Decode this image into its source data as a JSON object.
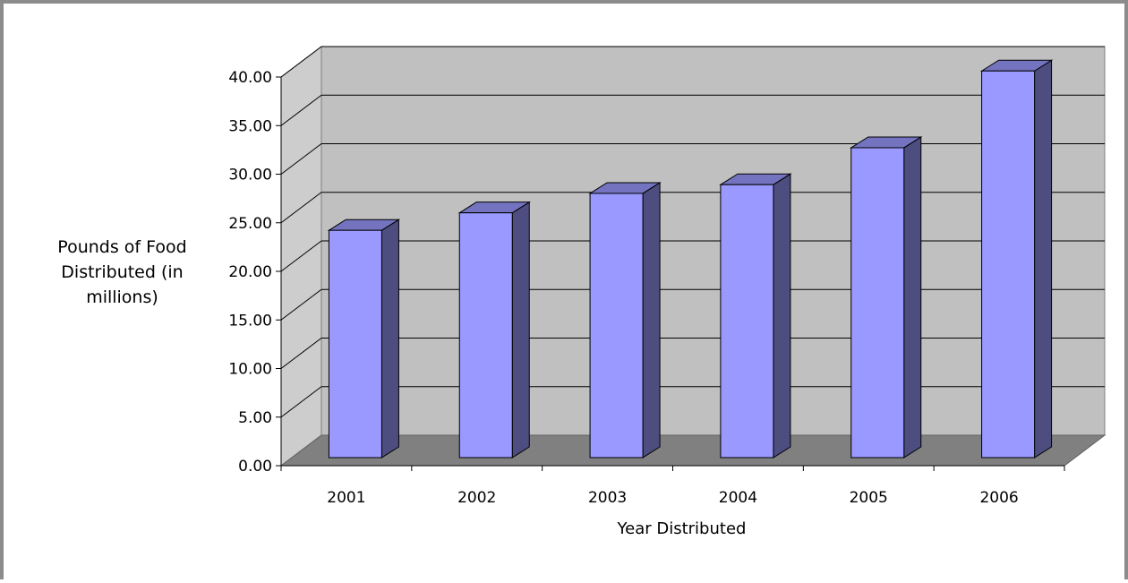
{
  "chart_data": {
    "type": "bar",
    "style": "3d-column",
    "categories": [
      "2001",
      "2002",
      "2003",
      "2004",
      "2005",
      "2006"
    ],
    "values": [
      23.3,
      25.1,
      27.1,
      28.0,
      31.8,
      39.7
    ],
    "xlabel": "Year Distributed",
    "ylabel": "Pounds of Food Distributed (in millions)",
    "ylim": [
      0,
      40
    ],
    "yticks": [
      "0.00",
      "5.00",
      "10.00",
      "15.00",
      "20.00",
      "25.00",
      "30.00",
      "35.00",
      "40.00"
    ],
    "grid": true,
    "legend": "none",
    "colors": {
      "bar_front": "#9999ff",
      "bar_side": "#4d4d80",
      "bar_top": "#7373bf",
      "back_wall": "#c0c0c0",
      "side_wall": "#cdcdcd",
      "floor": "#808080"
    }
  }
}
